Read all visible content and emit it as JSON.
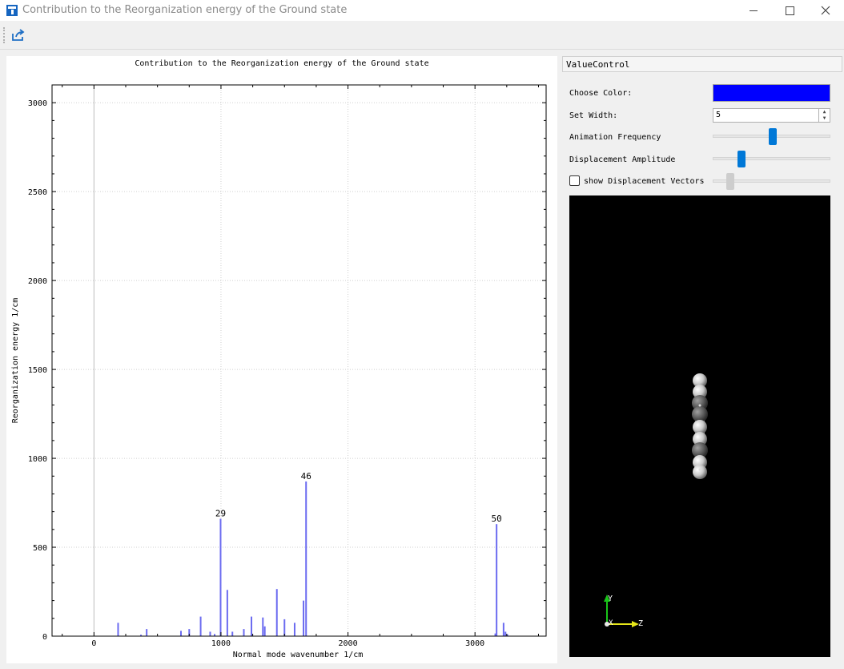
{
  "window": {
    "title": "Contribution to the Reorganization energy of the Ground state"
  },
  "toolbar": {
    "export_icon": "export-icon"
  },
  "colors": {
    "bars": "#6b6bf0",
    "selected_color": "#0000ff",
    "slider_accent": "#0078d7",
    "viewer_bg": "#000000"
  },
  "chart_data": {
    "type": "bar",
    "title": "Contribution to the Reorganization energy of the Ground state",
    "xlabel": "Normal mode wavenumber 1/cm",
    "ylabel": "Reorganization energy 1/cm",
    "xlim": [
      -330,
      3560
    ],
    "ylim": [
      0,
      3100
    ],
    "xticks": [
      0,
      1000,
      2000,
      3000
    ],
    "yticks": [
      0,
      500,
      1000,
      1500,
      2000,
      2500,
      3000
    ],
    "grid": true,
    "x": [
      190,
      370,
      415,
      685,
      750,
      840,
      915,
      950,
      997,
      1050,
      1090,
      1180,
      1240,
      1330,
      1345,
      1440,
      1500,
      1580,
      1650,
      1670,
      3160,
      3170,
      3225,
      3240,
      3255
    ],
    "values": [
      75,
      8,
      40,
      30,
      40,
      110,
      25,
      12,
      660,
      260,
      25,
      40,
      110,
      105,
      55,
      265,
      95,
      75,
      200,
      870,
      15,
      630,
      75,
      25,
      10
    ],
    "annotations": [
      {
        "x": 997,
        "y": 660,
        "text": "29"
      },
      {
        "x": 1670,
        "y": 870,
        "text": "46"
      },
      {
        "x": 3170,
        "y": 630,
        "text": "50"
      }
    ]
  },
  "controls": {
    "tab_label": "ValueControl",
    "choose_color_label": "Choose Color:",
    "set_width_label": "Set Width:",
    "set_width_value": "5",
    "animation_frequency_label": "Animation Frequency",
    "animation_frequency_value": 0.5,
    "displacement_amplitude_label": "Displacement Amplitude",
    "displacement_amplitude_value": 0.22,
    "show_vectors_label": "show Displacement Vectors",
    "show_vectors_checked": false,
    "show_vectors_slider_value": 0.12
  },
  "viewer": {
    "axis_y": "Y",
    "axis_x": "X",
    "axis_z": "Z"
  }
}
